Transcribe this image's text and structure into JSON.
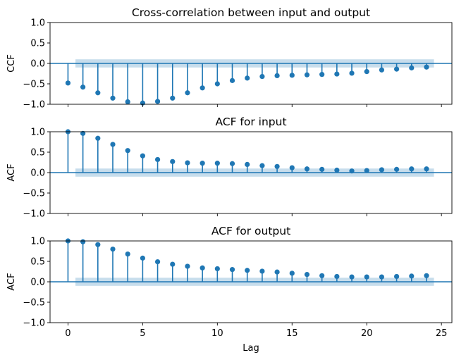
{
  "colors": {
    "stem": "#1f77b4",
    "band": "#1f77b4",
    "axis": "#000000"
  },
  "chart_data": [
    {
      "type": "scatter",
      "title": "Cross-correlation between input and output",
      "ylabel": "CCF",
      "xlabel": "",
      "xlim": [
        -1.2,
        25.7
      ],
      "ylim": [
        -1.0,
        1.0
      ],
      "yticks": [
        1.0,
        0.5,
        0.0,
        -0.5,
        -1.0
      ],
      "ytick_labels": [
        "1.0",
        "0.5",
        "0.0",
        "−0.5",
        "−1.0"
      ],
      "x": [
        0,
        1,
        2,
        3,
        4,
        5,
        6,
        7,
        8,
        9,
        10,
        11,
        12,
        13,
        14,
        15,
        16,
        17,
        18,
        19,
        20,
        21,
        22,
        23,
        24
      ],
      "values": [
        -0.48,
        -0.58,
        -0.72,
        -0.85,
        -0.94,
        -0.97,
        -0.93,
        -0.85,
        -0.72,
        -0.6,
        -0.5,
        -0.42,
        -0.36,
        -0.32,
        -0.3,
        -0.29,
        -0.28,
        -0.27,
        -0.26,
        -0.24,
        -0.2,
        -0.16,
        -0.14,
        -0.11,
        -0.09
      ],
      "confidence_band": {
        "x": [
          0.5,
          24.5
        ],
        "y": [
          -0.1,
          0.1
        ]
      }
    },
    {
      "type": "scatter",
      "title": "ACF for input",
      "ylabel": "ACF",
      "xlabel": "",
      "xlim": [
        -1.2,
        25.7
      ],
      "ylim": [
        -1.0,
        1.0
      ],
      "yticks": [
        1.0,
        0.5,
        0.0,
        -0.5,
        -1.0
      ],
      "ytick_labels": [
        "1.0",
        "0.5",
        "0.0",
        "−0.5",
        "−1.0"
      ],
      "x": [
        0,
        1,
        2,
        3,
        4,
        5,
        6,
        7,
        8,
        9,
        10,
        11,
        12,
        13,
        14,
        15,
        16,
        17,
        18,
        19,
        20,
        21,
        22,
        23,
        24
      ],
      "values": [
        1.0,
        0.96,
        0.84,
        0.69,
        0.54,
        0.41,
        0.32,
        0.27,
        0.24,
        0.23,
        0.23,
        0.22,
        0.2,
        0.17,
        0.15,
        0.12,
        0.09,
        0.08,
        0.06,
        0.04,
        0.05,
        0.07,
        0.08,
        0.09,
        0.09
      ],
      "confidence_band": {
        "x": [
          0.5,
          24.5
        ],
        "y": [
          -0.1,
          0.1
        ]
      }
    },
    {
      "type": "scatter",
      "title": "ACF for output",
      "ylabel": "ACF",
      "xlabel": "Lag",
      "xlim": [
        -1.2,
        25.7
      ],
      "ylim": [
        -1.0,
        1.0
      ],
      "yticks": [
        1.0,
        0.5,
        0.0,
        -0.5,
        -1.0
      ],
      "ytick_labels": [
        "1.0",
        "0.5",
        "0.0",
        "−0.5",
        "−1.0"
      ],
      "xticks": [
        0,
        5,
        10,
        15,
        20,
        25
      ],
      "xtick_labels": [
        "0",
        "5",
        "10",
        "15",
        "20",
        "25"
      ],
      "x": [
        0,
        1,
        2,
        3,
        4,
        5,
        6,
        7,
        8,
        9,
        10,
        11,
        12,
        13,
        14,
        15,
        16,
        17,
        18,
        19,
        20,
        21,
        22,
        23,
        24
      ],
      "values": [
        1.0,
        0.98,
        0.91,
        0.8,
        0.68,
        0.58,
        0.49,
        0.43,
        0.38,
        0.34,
        0.32,
        0.3,
        0.28,
        0.26,
        0.24,
        0.21,
        0.18,
        0.15,
        0.13,
        0.12,
        0.12,
        0.12,
        0.13,
        0.14,
        0.15
      ],
      "confidence_band": {
        "x": [
          0.5,
          24.5
        ],
        "y": [
          -0.1,
          0.1
        ]
      }
    }
  ]
}
